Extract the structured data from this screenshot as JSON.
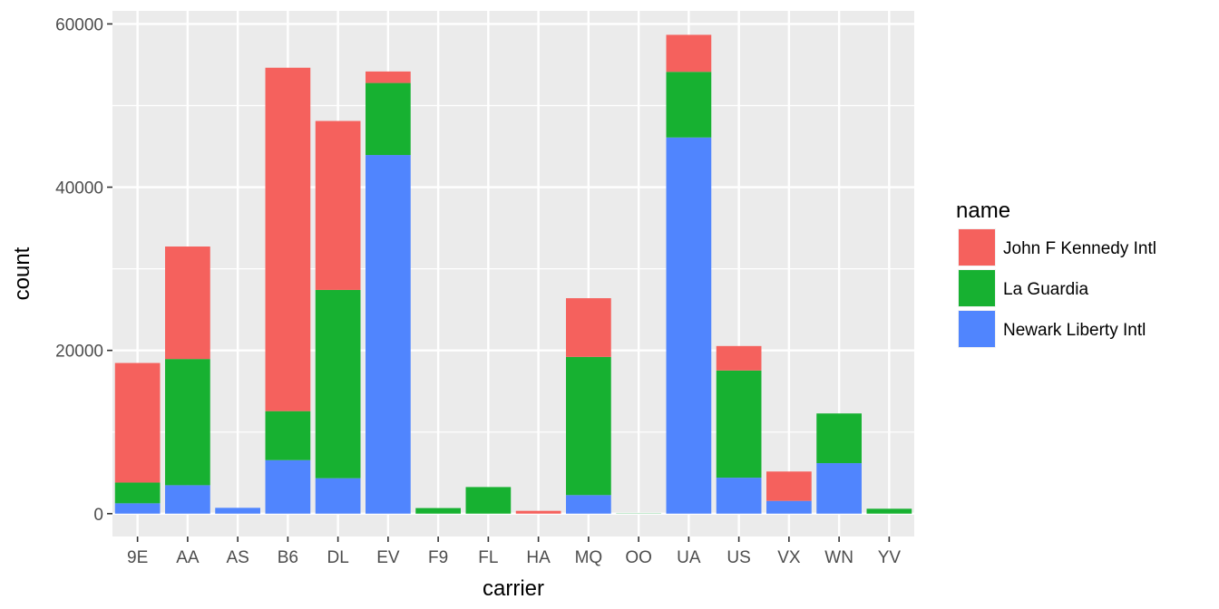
{
  "chart_data": {
    "type": "bar",
    "stacked": true,
    "xlabel": "carrier",
    "ylabel": "count",
    "ylim": [
      -2800,
      61600
    ],
    "yticks": [
      0,
      20000,
      40000,
      60000
    ],
    "grid": true,
    "legend": {
      "title": "name",
      "position": "right"
    },
    "categories": [
      "9E",
      "AA",
      "AS",
      "B6",
      "DL",
      "EV",
      "F9",
      "FL",
      "HA",
      "MQ",
      "OO",
      "UA",
      "US",
      "VX",
      "WN",
      "YV"
    ],
    "series": [
      {
        "name": "Newark Liberty Intl",
        "color": "#5085fe",
        "values": [
          1268,
          3487,
          714,
          6557,
          4342,
          43939,
          0,
          0,
          0,
          2276,
          6,
          46087,
          4405,
          1566,
          6188,
          0
        ]
      },
      {
        "name": "La Guardia",
        "color": "#17b131",
        "values": [
          2541,
          15459,
          0,
          6002,
          23067,
          8826,
          685,
          3260,
          0,
          16928,
          26,
          8044,
          13136,
          0,
          6087,
          601
        ]
      },
      {
        "name": "John F Kennedy Intl",
        "color": "#f5615d",
        "values": [
          14651,
          13783,
          0,
          42076,
          20701,
          1408,
          0,
          0,
          342,
          7193,
          0,
          4534,
          2995,
          3596,
          0,
          0
        ]
      }
    ],
    "legend_order": [
      "John F Kennedy Intl",
      "La Guardia",
      "Newark Liberty Intl"
    ]
  }
}
